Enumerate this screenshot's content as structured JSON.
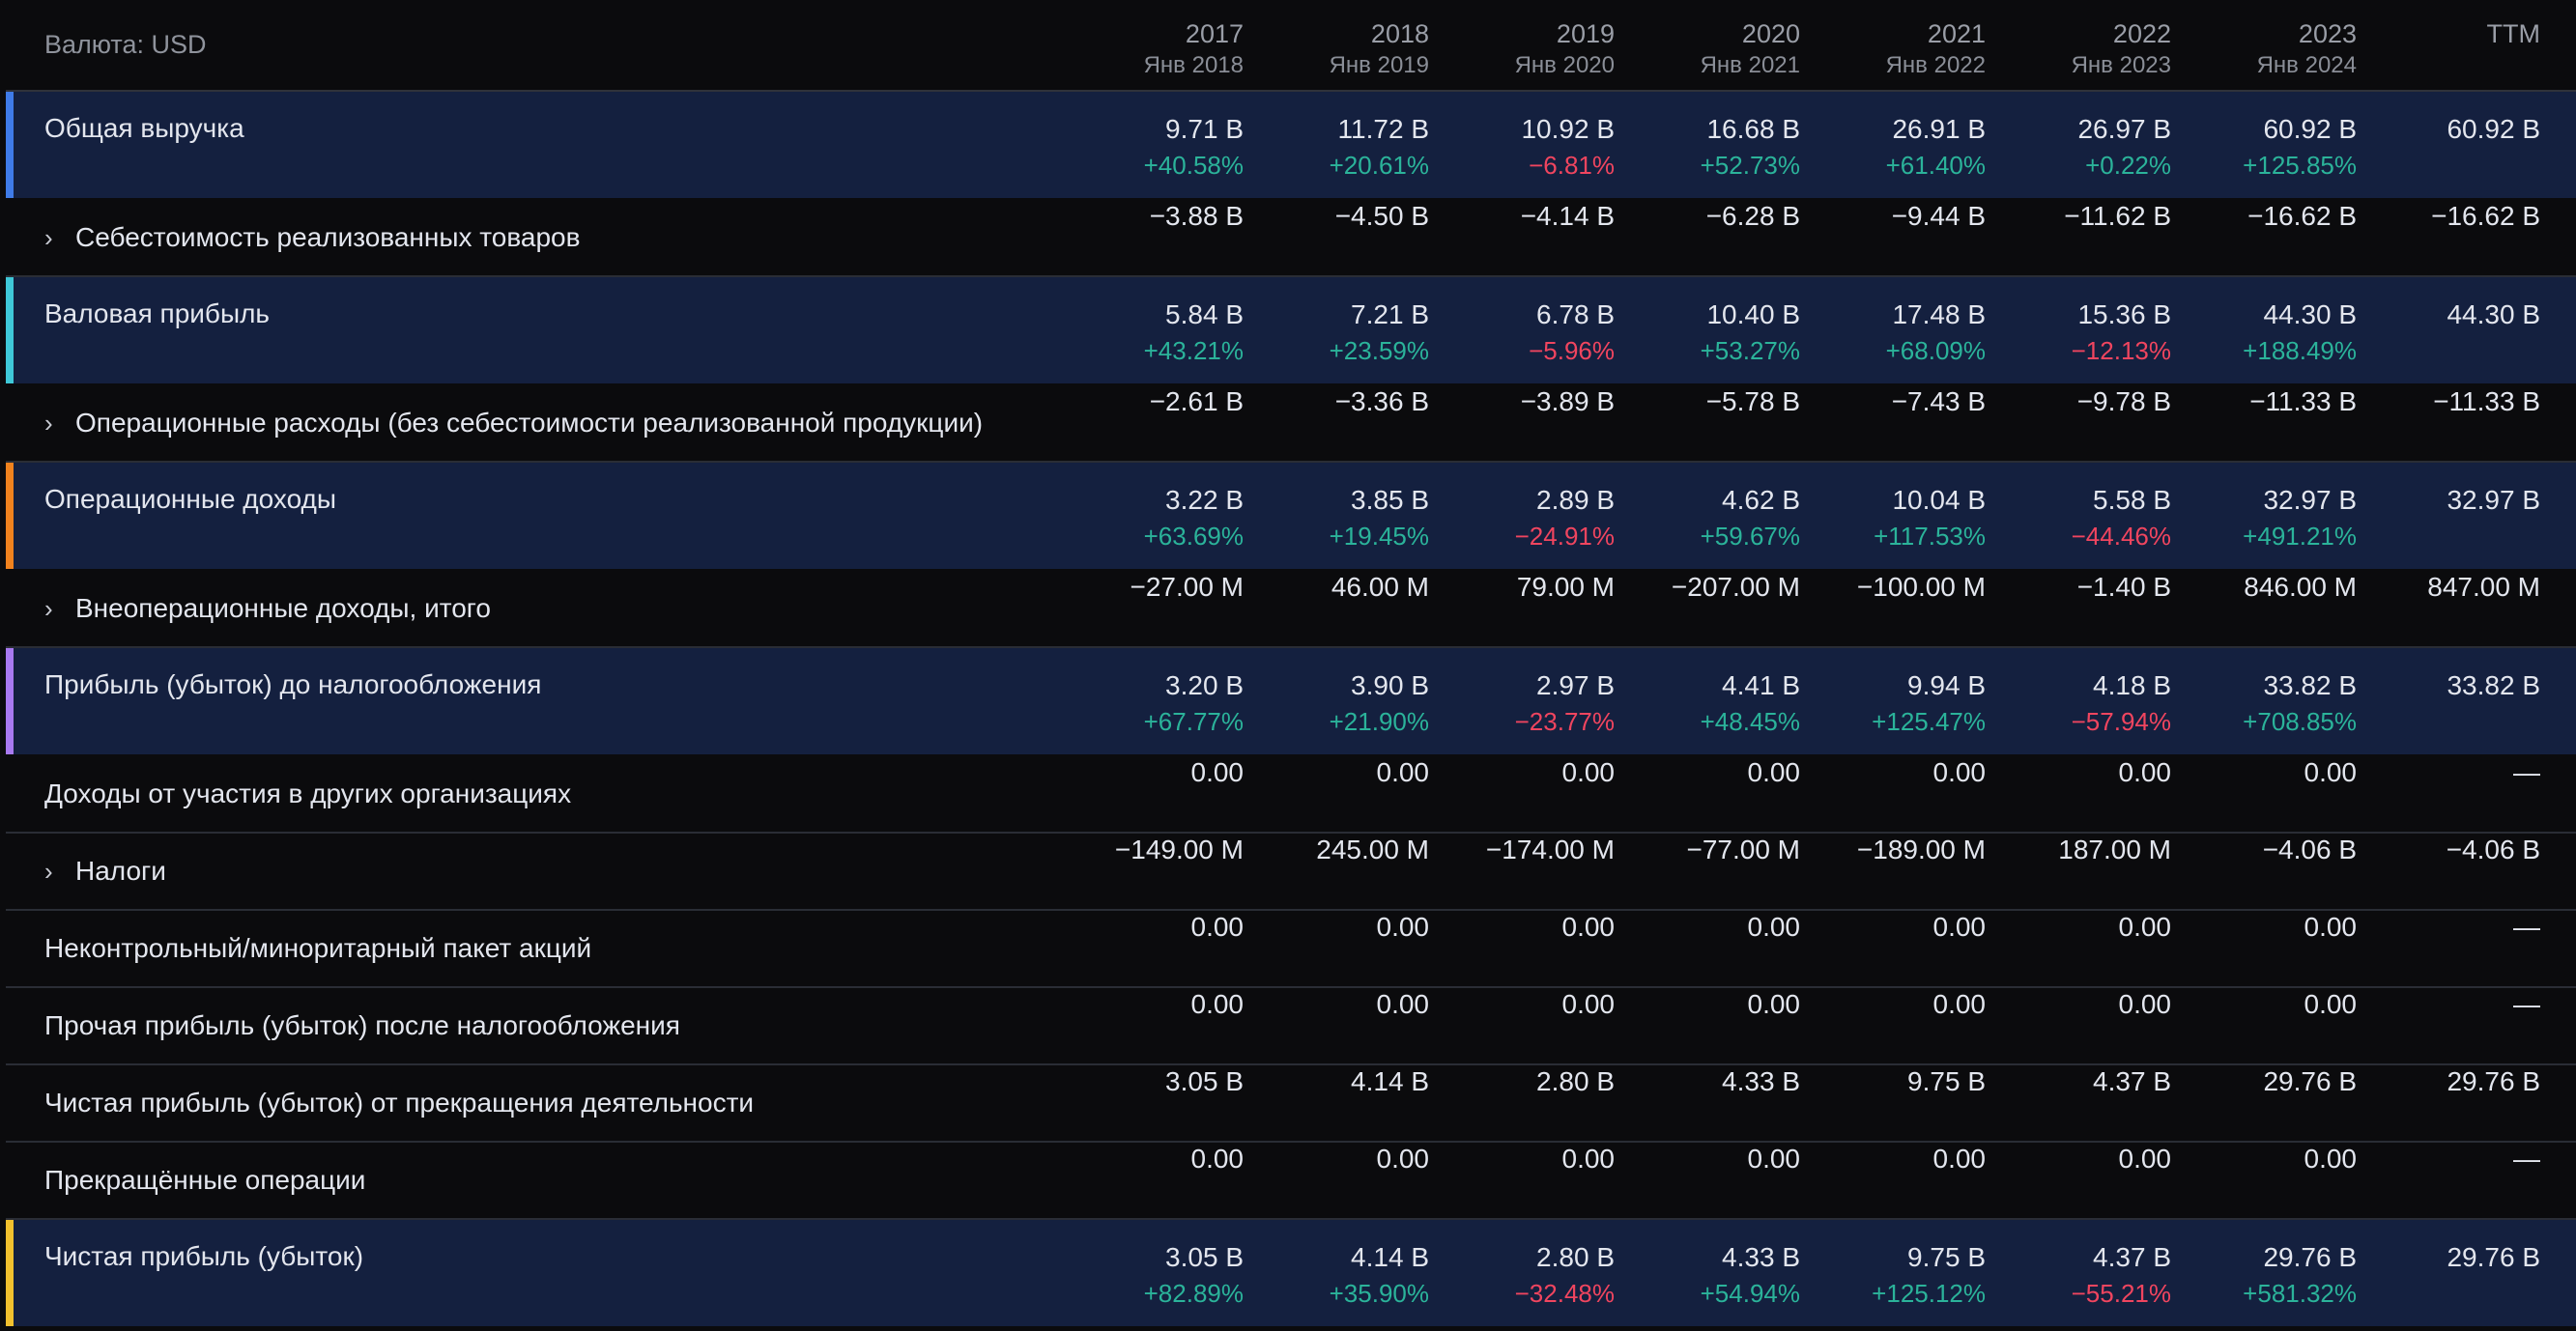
{
  "header": {
    "currency_label": "Валюта: USD",
    "columns": [
      {
        "year": "2017",
        "sub": "Янв 2018"
      },
      {
        "year": "2018",
        "sub": "Янв 2019"
      },
      {
        "year": "2019",
        "sub": "Янв 2020"
      },
      {
        "year": "2020",
        "sub": "Янв 2021"
      },
      {
        "year": "2021",
        "sub": "Янв 2022"
      },
      {
        "year": "2022",
        "sub": "Янв 2023"
      },
      {
        "year": "2023",
        "sub": "Янв 2024"
      },
      {
        "year": "TTM",
        "sub": ""
      }
    ]
  },
  "colors": {
    "background": "#0b0b0d",
    "highlight_row": "#14203f",
    "positive": "#2bb39a",
    "negative": "#f0455f",
    "accent_blue": "#3f7be8",
    "accent_cyan": "#3fc8d8",
    "accent_orange": "#f0821e",
    "accent_purple": "#a879f0",
    "accent_yellow": "#f2c12e"
  },
  "rows": [
    {
      "label": "Общая выручка",
      "highlight": true,
      "expandable": false,
      "accent": "#3f7be8",
      "values": [
        "9.71 B",
        "11.72 B",
        "10.92 B",
        "16.68 B",
        "26.91 B",
        "26.97 B",
        "60.92 B",
        "60.92 B"
      ],
      "pct": [
        "+40.58%",
        "+20.61%",
        "−6.81%",
        "+52.73%",
        "+61.40%",
        "+0.22%",
        "+125.85%",
        ""
      ]
    },
    {
      "label": "Себестоимость реализованных товаров",
      "highlight": false,
      "expandable": true,
      "values": [
        "−3.88 B",
        "−4.50 B",
        "−4.14 B",
        "−6.28 B",
        "−9.44 B",
        "−11.62 B",
        "−16.62 B",
        "−16.62 B"
      ]
    },
    {
      "label": "Валовая прибыль",
      "highlight": true,
      "expandable": false,
      "accent": "#3fc8d8",
      "values": [
        "5.84 B",
        "7.21 B",
        "6.78 B",
        "10.40 B",
        "17.48 B",
        "15.36 B",
        "44.30 B",
        "44.30 B"
      ],
      "pct": [
        "+43.21%",
        "+23.59%",
        "−5.96%",
        "+53.27%",
        "+68.09%",
        "−12.13%",
        "+188.49%",
        ""
      ]
    },
    {
      "label": "Операционные расходы (без себестоимости реализованной продукции)",
      "highlight": false,
      "expandable": true,
      "values": [
        "−2.61 B",
        "−3.36 B",
        "−3.89 B",
        "−5.78 B",
        "−7.43 B",
        "−9.78 B",
        "−11.33 B",
        "−11.33 B"
      ]
    },
    {
      "label": "Операционные доходы",
      "highlight": true,
      "expandable": false,
      "accent": "#f0821e",
      "values": [
        "3.22 B",
        "3.85 B",
        "2.89 B",
        "4.62 B",
        "10.04 B",
        "5.58 B",
        "32.97 B",
        "32.97 B"
      ],
      "pct": [
        "+63.69%",
        "+19.45%",
        "−24.91%",
        "+59.67%",
        "+117.53%",
        "−44.46%",
        "+491.21%",
        ""
      ]
    },
    {
      "label": "Внеоперационные доходы, итого",
      "highlight": false,
      "expandable": true,
      "values": [
        "−27.00 M",
        "46.00 M",
        "79.00 M",
        "−207.00 M",
        "−100.00 M",
        "−1.40 B",
        "846.00 M",
        "847.00 M"
      ]
    },
    {
      "label": "Прибыль (убыток) до налогообложения",
      "highlight": true,
      "expandable": false,
      "accent": "#a879f0",
      "values": [
        "3.20 B",
        "3.90 B",
        "2.97 B",
        "4.41 B",
        "9.94 B",
        "4.18 B",
        "33.82 B",
        "33.82 B"
      ],
      "pct": [
        "+67.77%",
        "+21.90%",
        "−23.77%",
        "+48.45%",
        "+125.47%",
        "−57.94%",
        "+708.85%",
        ""
      ]
    },
    {
      "label": "Доходы от участия в других организациях",
      "highlight": false,
      "expandable": false,
      "values": [
        "0.00",
        "0.00",
        "0.00",
        "0.00",
        "0.00",
        "0.00",
        "0.00",
        "—"
      ]
    },
    {
      "label": "Налоги",
      "highlight": false,
      "expandable": true,
      "values": [
        "−149.00 M",
        "245.00 M",
        "−174.00 M",
        "−77.00 M",
        "−189.00 M",
        "187.00 M",
        "−4.06 B",
        "−4.06 B"
      ]
    },
    {
      "label": "Неконтрольный/миноритарный пакет акций",
      "highlight": false,
      "expandable": false,
      "values": [
        "0.00",
        "0.00",
        "0.00",
        "0.00",
        "0.00",
        "0.00",
        "0.00",
        "—"
      ]
    },
    {
      "label": "Прочая прибыль (убыток) после налогообложения",
      "highlight": false,
      "expandable": false,
      "values": [
        "0.00",
        "0.00",
        "0.00",
        "0.00",
        "0.00",
        "0.00",
        "0.00",
        "—"
      ]
    },
    {
      "label": "Чистая прибыль (убыток) от прекращения деятельности",
      "highlight": false,
      "expandable": false,
      "values": [
        "3.05 B",
        "4.14 B",
        "2.80 B",
        "4.33 B",
        "9.75 B",
        "4.37 B",
        "29.76 B",
        "29.76 B"
      ]
    },
    {
      "label": "Прекращённые операции",
      "highlight": false,
      "expandable": false,
      "values": [
        "0.00",
        "0.00",
        "0.00",
        "0.00",
        "0.00",
        "0.00",
        "0.00",
        "—"
      ]
    },
    {
      "label": "Чистая прибыль (убыток)",
      "highlight": true,
      "expandable": false,
      "accent": "#f2c12e",
      "values": [
        "3.05 B",
        "4.14 B",
        "2.80 B",
        "4.33 B",
        "9.75 B",
        "4.37 B",
        "29.76 B",
        "29.76 B"
      ],
      "pct": [
        "+82.89%",
        "+35.90%",
        "−32.48%",
        "+54.94%",
        "+125.12%",
        "−55.21%",
        "+581.32%",
        ""
      ]
    }
  ]
}
